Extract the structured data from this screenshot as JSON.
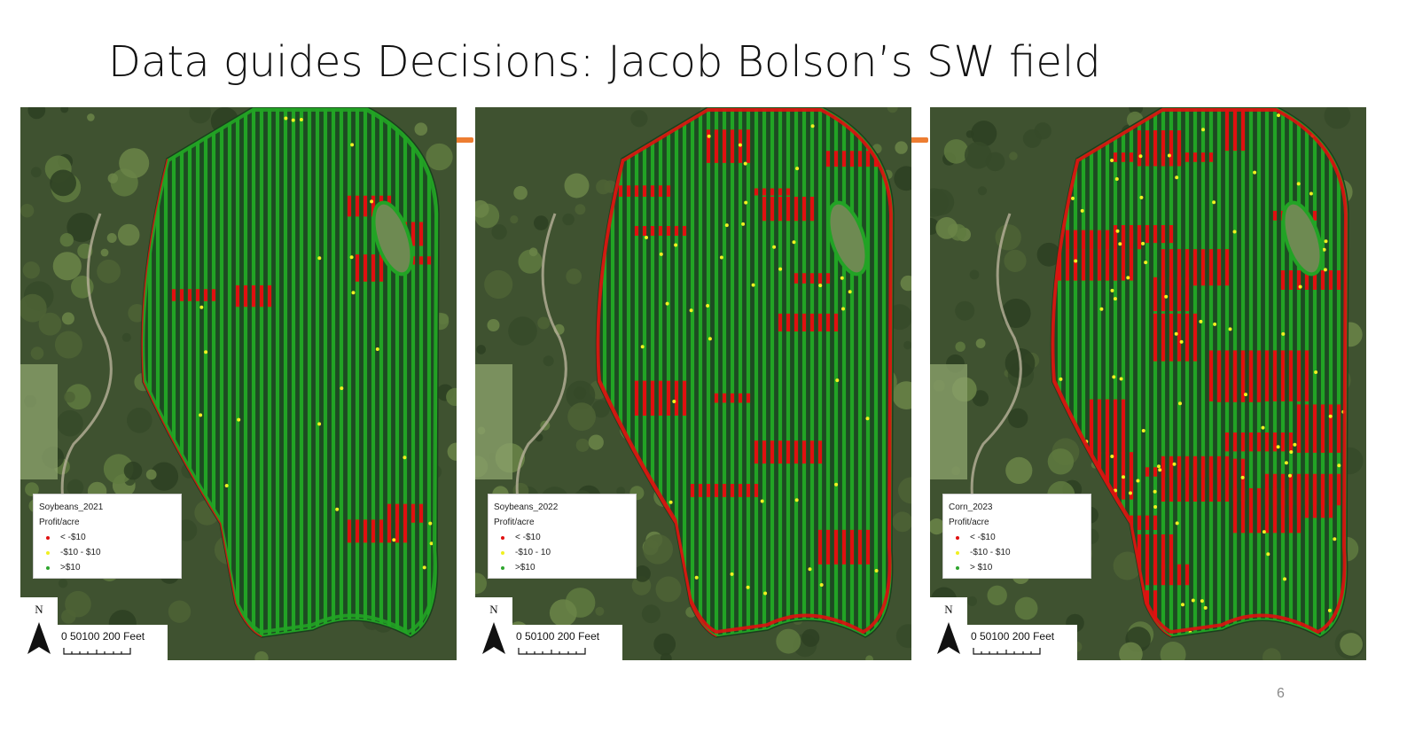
{
  "slide": {
    "title": "Data guides Decisions: Jacob Bolson’s SW field",
    "page_number": "6",
    "accent_color": "#ed7d31"
  },
  "legend_colors": {
    "loss": "#e01010",
    "breakeven": "#f0f020",
    "profit": "#2ea52e"
  },
  "maps": [
    {
      "legend_title": "Soybeans_2021",
      "legend_subtitle": "Profit/acre",
      "classes": [
        "< -$10",
        "-$10 - $10",
        ">$10"
      ],
      "north_label": "N",
      "scale_label": "0  50100    200 Feet",
      "red_intensity": "low"
    },
    {
      "legend_title": "Soybeans_2022",
      "legend_subtitle": "Profit/acre",
      "classes": [
        "< -$10",
        "-$10 - 10",
        ">$10"
      ],
      "north_label": "N",
      "scale_label": "0  50100    200 Feet",
      "red_intensity": "medium"
    },
    {
      "legend_title": "Corn_2023",
      "legend_subtitle": "Profit/acre",
      "classes": [
        "< -$10",
        "-$10 - $10",
        "> $10"
      ],
      "north_label": "N",
      "scale_label": "0  50100    200 Feet",
      "red_intensity": "high"
    }
  ]
}
